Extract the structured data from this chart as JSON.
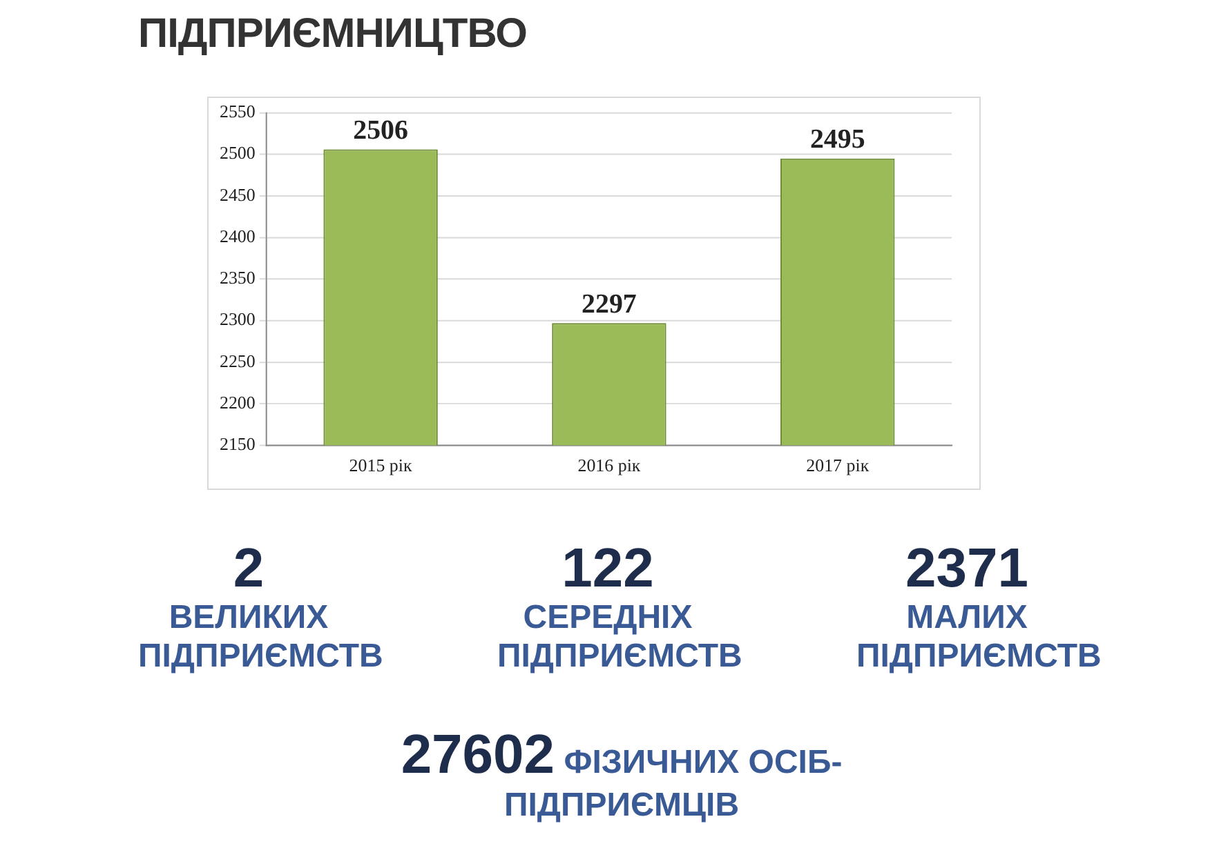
{
  "chart_data": {
    "type": "bar",
    "title": "ПІДПРИЄМНИЦТВО",
    "categories": [
      "2015 рік",
      "2016 рік",
      "2017 рік"
    ],
    "values": [
      2506,
      2297,
      2495
    ],
    "color": "#9bbb59",
    "ylim": [
      2150,
      2550
    ],
    "yticks": [
      2150,
      2200,
      2250,
      2300,
      2350,
      2400,
      2450,
      2500,
      2550
    ],
    "grid": "y",
    "data_labels": true,
    "legend": false,
    "annotations": [
      "2 ВЕЛИКИХ ПІДПРИЄМСТВ",
      "122 СЕРЕДНІХ ПІДПРИЄМСТВ",
      "2371 МАЛИХ ПІДПРИЄМСТВ",
      "27602 ФІЗИЧНИХ ОСІБ-ПІДПРИЄМЦІВ"
    ]
  }
}
